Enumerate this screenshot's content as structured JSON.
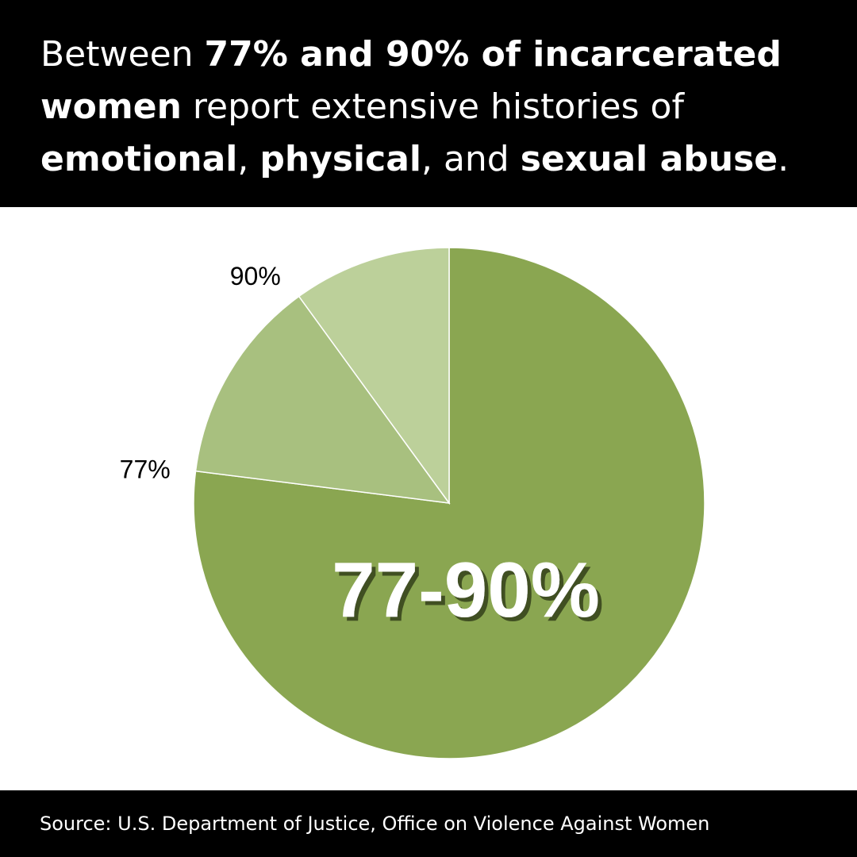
{
  "headline": {
    "t1": "Between ",
    "b1": "77% and 90% of incarcerated women",
    "t2": " report extensive histories of ",
    "b2": "emotional",
    "t3": ", ",
    "b3": "physical",
    "t4": ", and ",
    "b4": "sexual abuse",
    "t5": "."
  },
  "chart_data": {
    "type": "pie",
    "center_label": "77-90%",
    "slices": [
      {
        "label": "",
        "value": 77,
        "color": "#8aa651"
      },
      {
        "label": "77%",
        "value": 13,
        "color": "#a8c07f"
      },
      {
        "label": "90%",
        "value": 10,
        "color": "#bcd09a"
      }
    ]
  },
  "footer": {
    "source": "Source: U.S. Department of Justice, Office on Violence Against Women"
  }
}
